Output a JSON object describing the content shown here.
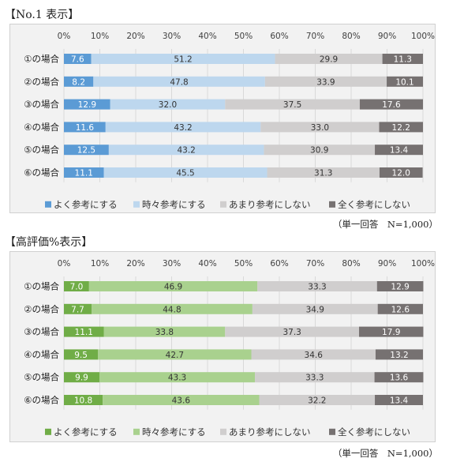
{
  "chart_data": [
    {
      "type": "bar",
      "stacked": true,
      "orientation": "horizontal",
      "title": "【No.1 表示】",
      "note": "（単一回答　N=1,000）",
      "xlim": [
        0,
        100
      ],
      "xticks": [
        "0%",
        "10%",
        "20%",
        "30%",
        "40%",
        "50%",
        "60%",
        "70%",
        "80%",
        "90%",
        "100%"
      ],
      "categories": [
        "①の場合",
        "②の場合",
        "③の場合",
        "④の場合",
        "⑤の場合",
        "⑥の場合"
      ],
      "series": [
        {
          "name": "よく参考にする",
          "color": "#5b9bd5",
          "values": [
            7.6,
            8.2,
            12.9,
            11.6,
            12.5,
            11.1
          ]
        },
        {
          "name": "時々参考にする",
          "color": "#bdd7ee",
          "values": [
            51.2,
            47.8,
            32.0,
            43.2,
            43.2,
            45.5
          ]
        },
        {
          "name": "あまり参考にしない",
          "color": "#d0cece",
          "values": [
            29.9,
            33.9,
            37.5,
            33.0,
            30.9,
            31.3
          ]
        },
        {
          "name": "全く参考にしない",
          "color": "#767171",
          "values": [
            11.3,
            10.1,
            17.6,
            12.2,
            13.4,
            12.0
          ]
        }
      ],
      "legend_position": "bottom"
    },
    {
      "type": "bar",
      "stacked": true,
      "orientation": "horizontal",
      "title": "【高評価%表示】",
      "note": "（単一回答　N=1,000）",
      "xlim": [
        0,
        100
      ],
      "xticks": [
        "0%",
        "10%",
        "20%",
        "30%",
        "40%",
        "50%",
        "60%",
        "70%",
        "80%",
        "90%",
        "100%"
      ],
      "categories": [
        "①の場合",
        "②の場合",
        "③の場合",
        "④の場合",
        "⑤の場合",
        "⑥の場合"
      ],
      "series": [
        {
          "name": "よく参考にする",
          "color": "#70ad47",
          "values": [
            7.0,
            7.7,
            11.1,
            9.5,
            9.9,
            10.8
          ]
        },
        {
          "name": "時々参考にする",
          "color": "#a9d18e",
          "values": [
            46.9,
            44.8,
            33.8,
            42.7,
            43.3,
            43.6
          ]
        },
        {
          "name": "あまり参考にしない",
          "color": "#d0cece",
          "values": [
            33.3,
            34.9,
            37.3,
            34.6,
            33.3,
            32.2
          ]
        },
        {
          "name": "全く参考にしない",
          "color": "#767171",
          "values": [
            12.9,
            12.6,
            17.9,
            13.2,
            13.6,
            13.4
          ]
        }
      ],
      "legend_position": "bottom"
    }
  ]
}
